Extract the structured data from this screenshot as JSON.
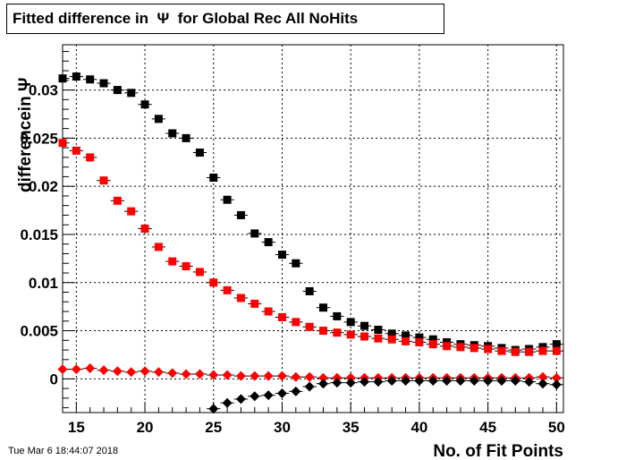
{
  "chart_data": {
    "type": "scatter",
    "title": "Fitted difference in  Ψ  for Global Rec All NoHits",
    "xlabel": "No. of Fit Points",
    "ylabel": "differencein  Ψ",
    "xlim": [
      14,
      50.5
    ],
    "ylim": [
      -0.0035,
      0.0347
    ],
    "x_ticks": [
      15,
      20,
      25,
      30,
      35,
      40,
      45,
      50
    ],
    "y_ticks": [
      0,
      0.005,
      0.01,
      0.015,
      0.02,
      0.025,
      0.03
    ],
    "y_tick_labels": [
      "0",
      "0.005",
      "0.01",
      "0.015",
      "0.02",
      "0.025",
      "0.03"
    ],
    "grid": true,
    "series": [
      {
        "marker": "square",
        "color": "#000000",
        "x": [
          14,
          15,
          16,
          17,
          18,
          19,
          20,
          21,
          22,
          23,
          24,
          25,
          26,
          27,
          28,
          29,
          30,
          31,
          32,
          33,
          34,
          35,
          36,
          37,
          38,
          39,
          40,
          41,
          42,
          43,
          44,
          45,
          46,
          47,
          48,
          49,
          50
        ],
        "y": [
          0.0312,
          0.0314,
          0.0311,
          0.0307,
          0.03,
          0.0297,
          0.0285,
          0.027,
          0.0255,
          0.025,
          0.0235,
          0.0209,
          0.0186,
          0.017,
          0.0151,
          0.0142,
          0.0129,
          0.012,
          0.0091,
          0.0074,
          0.0065,
          0.0059,
          0.0055,
          0.0051,
          0.0047,
          0.0045,
          0.0043,
          0.0041,
          0.0038,
          0.0036,
          0.0035,
          0.0034,
          0.0032,
          0.003,
          0.0031,
          0.0033,
          0.0036
        ]
      },
      {
        "marker": "square",
        "color": "#ff0000",
        "x": [
          14,
          15,
          16,
          17,
          18,
          19,
          20,
          21,
          22,
          23,
          24,
          25,
          26,
          27,
          28,
          29,
          30,
          31,
          32,
          33,
          34,
          35,
          36,
          37,
          38,
          39,
          40,
          41,
          42,
          43,
          44,
          45,
          46,
          47,
          48,
          49,
          50
        ],
        "y": [
          0.0245,
          0.0237,
          0.023,
          0.0206,
          0.0185,
          0.0174,
          0.0156,
          0.0137,
          0.0122,
          0.0117,
          0.0111,
          0.01,
          0.0092,
          0.0084,
          0.0078,
          0.007,
          0.0064,
          0.0059,
          0.0054,
          0.005,
          0.0048,
          0.0046,
          0.0044,
          0.0042,
          0.0041,
          0.0039,
          0.0038,
          0.0036,
          0.0034,
          0.0033,
          0.0032,
          0.0031,
          0.0029,
          0.0028,
          0.0028,
          0.0029,
          0.0029
        ]
      },
      {
        "marker": "diamond",
        "color": "#ff0000",
        "x": [
          14,
          15,
          16,
          17,
          18,
          19,
          20,
          21,
          22,
          23,
          24,
          25,
          26,
          27,
          28,
          29,
          30,
          31,
          32,
          33,
          34,
          35,
          36,
          37,
          38,
          39,
          40,
          41,
          42,
          43,
          44,
          45,
          46,
          47,
          48,
          49,
          50
        ],
        "y": [
          0.001,
          0.001,
          0.0011,
          0.0009,
          0.0008,
          0.0007,
          0.0008,
          0.0007,
          0.0006,
          0.0005,
          0.0005,
          0.0004,
          0.0004,
          0.0003,
          0.0003,
          0.0003,
          0.0003,
          0.0002,
          0.0002,
          0.0001,
          0.0001,
          0.0001,
          0.0001,
          0.0001,
          0.0001,
          0.0001,
          0.0001,
          0.0001,
          0.0001,
          0.0001,
          0.0001,
          0.0001,
          0.0001,
          0.0001,
          0.0001,
          0.0002,
          0.0001
        ]
      },
      {
        "marker": "diamond",
        "color": "#000000",
        "x": [
          25,
          26,
          27,
          28,
          29,
          30,
          31,
          32,
          33,
          34,
          35,
          36,
          37,
          38,
          39,
          40,
          41,
          42,
          43,
          44,
          45,
          46,
          47,
          48,
          49,
          50
        ],
        "y": [
          -0.0031,
          -0.0025,
          -0.0021,
          -0.0018,
          -0.0017,
          -0.0015,
          -0.0013,
          -0.0008,
          -0.0005,
          -0.0004,
          -0.0004,
          -0.0003,
          -0.0003,
          -0.0002,
          -0.0002,
          -0.0002,
          -0.0002,
          -0.0002,
          -0.0002,
          -0.0002,
          -0.0002,
          -0.0002,
          -0.0002,
          -0.0003,
          -0.0005,
          -0.0006
        ]
      }
    ]
  },
  "footer": {
    "timestamp": "Tue Mar  6 18:44:07 2018"
  }
}
